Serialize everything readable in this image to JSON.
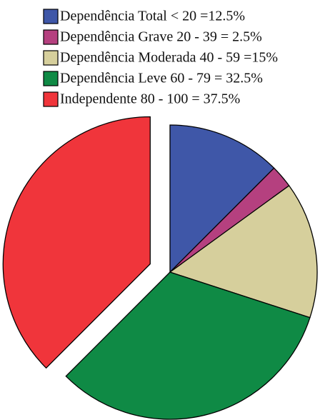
{
  "chart_data": {
    "type": "pie",
    "categories": [
      "Dependência Total < 20 =12.5%",
      "Dependência Grave 20 - 39 = 2.5%",
      "Dependência Moderada 40 - 59 =15%",
      "Dependência Leve 60 - 79 = 32.5%",
      "Independente 80 - 100 = 37.5%"
    ],
    "values": [
      12.5,
      2.5,
      15,
      32.5,
      37.5
    ],
    "colors": [
      "#3f57a8",
      "#b5407f",
      "#d6cf9c",
      "#0f8a45",
      "#f0353b"
    ],
    "legend": "top"
  }
}
